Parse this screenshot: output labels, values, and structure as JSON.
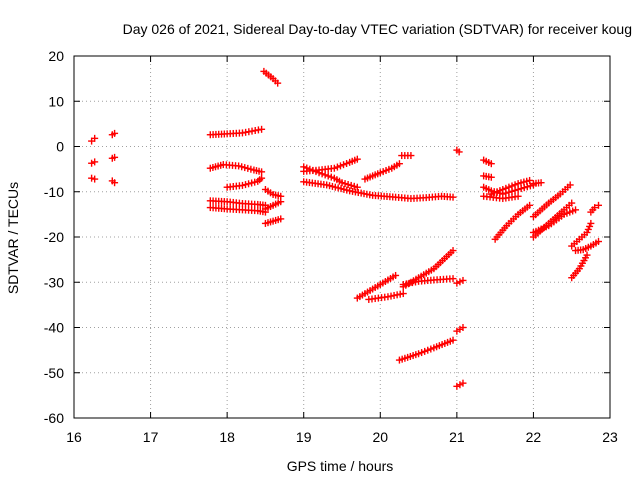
{
  "chart_data": {
    "type": "scatter",
    "title": "Day 026 of 2021, Sidereal Day-to-day VTEC variation (SDTVAR) for receiver koug",
    "xlabel": "GPS time / hours",
    "ylabel": "SDTVAR / TECUs",
    "xlim": [
      16,
      23
    ],
    "ylim": [
      -60,
      20
    ],
    "xticks": [
      "16",
      "17",
      "18",
      "19",
      "20",
      "21",
      "22",
      "23"
    ],
    "yticks": [
      "20",
      "10",
      "0",
      "-10",
      "-20",
      "-30",
      "-40",
      "-50",
      "-60"
    ],
    "grid": true,
    "marker": "plus",
    "color": "#ff0000",
    "segments": [
      [
        [
          16.23,
          1.2
        ],
        [
          16.27,
          1.8
        ]
      ],
      [
        [
          16.23,
          -3.7
        ],
        [
          16.27,
          -3.4
        ]
      ],
      [
        [
          16.23,
          -7.0
        ],
        [
          16.27,
          -7.2
        ]
      ],
      [
        [
          16.5,
          2.6
        ],
        [
          16.53,
          2.9
        ]
      ],
      [
        [
          16.5,
          -2.6
        ],
        [
          16.53,
          -2.4
        ]
      ],
      [
        [
          16.5,
          -7.6
        ],
        [
          16.53,
          -8.0
        ]
      ],
      [
        [
          17.78,
          2.6
        ],
        [
          18.0,
          2.8
        ],
        [
          18.2,
          3.0
        ],
        [
          18.45,
          3.8
        ]
      ],
      [
        [
          18.48,
          16.6
        ],
        [
          18.6,
          15.0
        ],
        [
          18.66,
          14.0
        ]
      ],
      [
        [
          17.78,
          -4.8
        ],
        [
          17.95,
          -4.0
        ],
        [
          18.15,
          -4.3
        ],
        [
          18.35,
          -5.2
        ],
        [
          18.45,
          -5.6
        ]
      ],
      [
        [
          18.0,
          -9.0
        ],
        [
          18.2,
          -8.6
        ],
        [
          18.4,
          -7.7
        ],
        [
          18.45,
          -7.0
        ]
      ],
      [
        [
          18.5,
          -9.5
        ],
        [
          18.6,
          -10.6
        ],
        [
          18.7,
          -11.0
        ]
      ],
      [
        [
          17.78,
          -12.0
        ],
        [
          18.0,
          -12.2
        ],
        [
          18.2,
          -12.6
        ],
        [
          18.4,
          -12.8
        ],
        [
          18.5,
          -13.0
        ]
      ],
      [
        [
          17.78,
          -13.5
        ],
        [
          18.0,
          -13.8
        ],
        [
          18.2,
          -14.0
        ],
        [
          18.4,
          -14.2
        ],
        [
          18.5,
          -14.5
        ]
      ],
      [
        [
          18.5,
          -13.8
        ],
        [
          18.6,
          -13.0
        ],
        [
          18.7,
          -12.2
        ]
      ],
      [
        [
          18.5,
          -17.0
        ],
        [
          18.6,
          -16.5
        ],
        [
          18.7,
          -16.0
        ]
      ],
      [
        [
          19.0,
          -4.5
        ],
        [
          19.2,
          -5.8
        ],
        [
          19.4,
          -7.0
        ],
        [
          19.5,
          -8.0
        ],
        [
          19.7,
          -9.0
        ]
      ],
      [
        [
          19.0,
          -5.5
        ],
        [
          19.2,
          -5.2
        ],
        [
          19.4,
          -4.8
        ],
        [
          19.6,
          -3.5
        ],
        [
          19.7,
          -2.8
        ]
      ],
      [
        [
          19.0,
          -7.8
        ],
        [
          19.3,
          -8.5
        ],
        [
          19.6,
          -9.8
        ],
        [
          19.9,
          -10.8
        ],
        [
          20.2,
          -11.2
        ],
        [
          20.4,
          -11.5
        ],
        [
          20.6,
          -11.3
        ],
        [
          20.8,
          -11.0
        ],
        [
          20.95,
          -11.2
        ]
      ],
      [
        [
          19.8,
          -7.2
        ],
        [
          20.0,
          -5.8
        ],
        [
          20.15,
          -4.8
        ],
        [
          20.25,
          -3.8
        ]
      ],
      [
        [
          20.28,
          -2.0
        ],
        [
          20.4,
          -2.0
        ]
      ],
      [
        [
          21.0,
          -0.8
        ],
        [
          21.03,
          -1.2
        ]
      ],
      [
        [
          19.7,
          -33.5
        ],
        [
          19.9,
          -31.5
        ],
        [
          20.1,
          -29.5
        ],
        [
          20.2,
          -28.5
        ]
      ],
      [
        [
          19.85,
          -33.8
        ],
        [
          20.1,
          -33.2
        ],
        [
          20.3,
          -32.5
        ]
      ],
      [
        [
          20.3,
          -30.5
        ],
        [
          20.5,
          -29.8
        ],
        [
          20.7,
          -29.5
        ],
        [
          20.95,
          -29.2
        ]
      ],
      [
        [
          20.3,
          -31.0
        ],
        [
          20.5,
          -29.0
        ],
        [
          20.7,
          -27.0
        ],
        [
          20.95,
          -23.0
        ]
      ],
      [
        [
          21.0,
          -30.2
        ],
        [
          21.08,
          -29.6
        ]
      ],
      [
        [
          20.25,
          -47.2
        ],
        [
          20.5,
          -45.8
        ],
        [
          20.7,
          -44.5
        ],
        [
          20.95,
          -42.8
        ]
      ],
      [
        [
          21.0,
          -40.8
        ],
        [
          21.08,
          -40.0
        ]
      ],
      [
        [
          21.0,
          -53.0
        ],
        [
          21.08,
          -52.3
        ]
      ],
      [
        [
          21.35,
          -3.0
        ],
        [
          21.45,
          -3.8
        ]
      ],
      [
        [
          21.35,
          -6.5
        ],
        [
          21.45,
          -6.8
        ]
      ],
      [
        [
          21.35,
          -9.0
        ],
        [
          21.45,
          -9.8
        ],
        [
          21.6,
          -10.5
        ],
        [
          21.8,
          -9.5
        ],
        [
          22.0,
          -8.5
        ]
      ],
      [
        [
          21.45,
          -10.5
        ],
        [
          21.6,
          -9.5
        ],
        [
          21.8,
          -8.2
        ],
        [
          21.95,
          -7.5
        ]
      ],
      [
        [
          21.35,
          -11.0
        ],
        [
          21.6,
          -11.5
        ],
        [
          21.8,
          -11.0
        ]
      ],
      [
        [
          22.0,
          -8.2
        ],
        [
          22.1,
          -8.0
        ]
      ],
      [
        [
          21.5,
          -20.5
        ],
        [
          21.65,
          -17.5
        ],
        [
          21.8,
          -15.0
        ],
        [
          21.95,
          -13.0
        ]
      ],
      [
        [
          22.0,
          -15.5
        ],
        [
          22.2,
          -12.5
        ],
        [
          22.35,
          -10.5
        ],
        [
          22.48,
          -8.5
        ]
      ],
      [
        [
          22.0,
          -20.0
        ],
        [
          22.2,
          -17.0
        ],
        [
          22.4,
          -14.0
        ],
        [
          22.5,
          -12.5
        ]
      ],
      [
        [
          22.0,
          -19.0
        ],
        [
          22.2,
          -17.5
        ],
        [
          22.4,
          -15.0
        ],
        [
          22.55,
          -14.0
        ]
      ],
      [
        [
          22.5,
          -22.0
        ],
        [
          22.6,
          -20.5
        ],
        [
          22.7,
          -19.0
        ],
        [
          22.75,
          -17.0
        ]
      ],
      [
        [
          22.5,
          -29.0
        ],
        [
          22.6,
          -27.0
        ],
        [
          22.7,
          -24.0
        ]
      ],
      [
        [
          22.55,
          -23.0
        ],
        [
          22.65,
          -22.8
        ],
        [
          22.75,
          -22.0
        ],
        [
          22.85,
          -21.0
        ]
      ],
      [
        [
          22.75,
          -14.5
        ],
        [
          22.8,
          -13.5
        ],
        [
          22.85,
          -13.0
        ]
      ]
    ]
  }
}
